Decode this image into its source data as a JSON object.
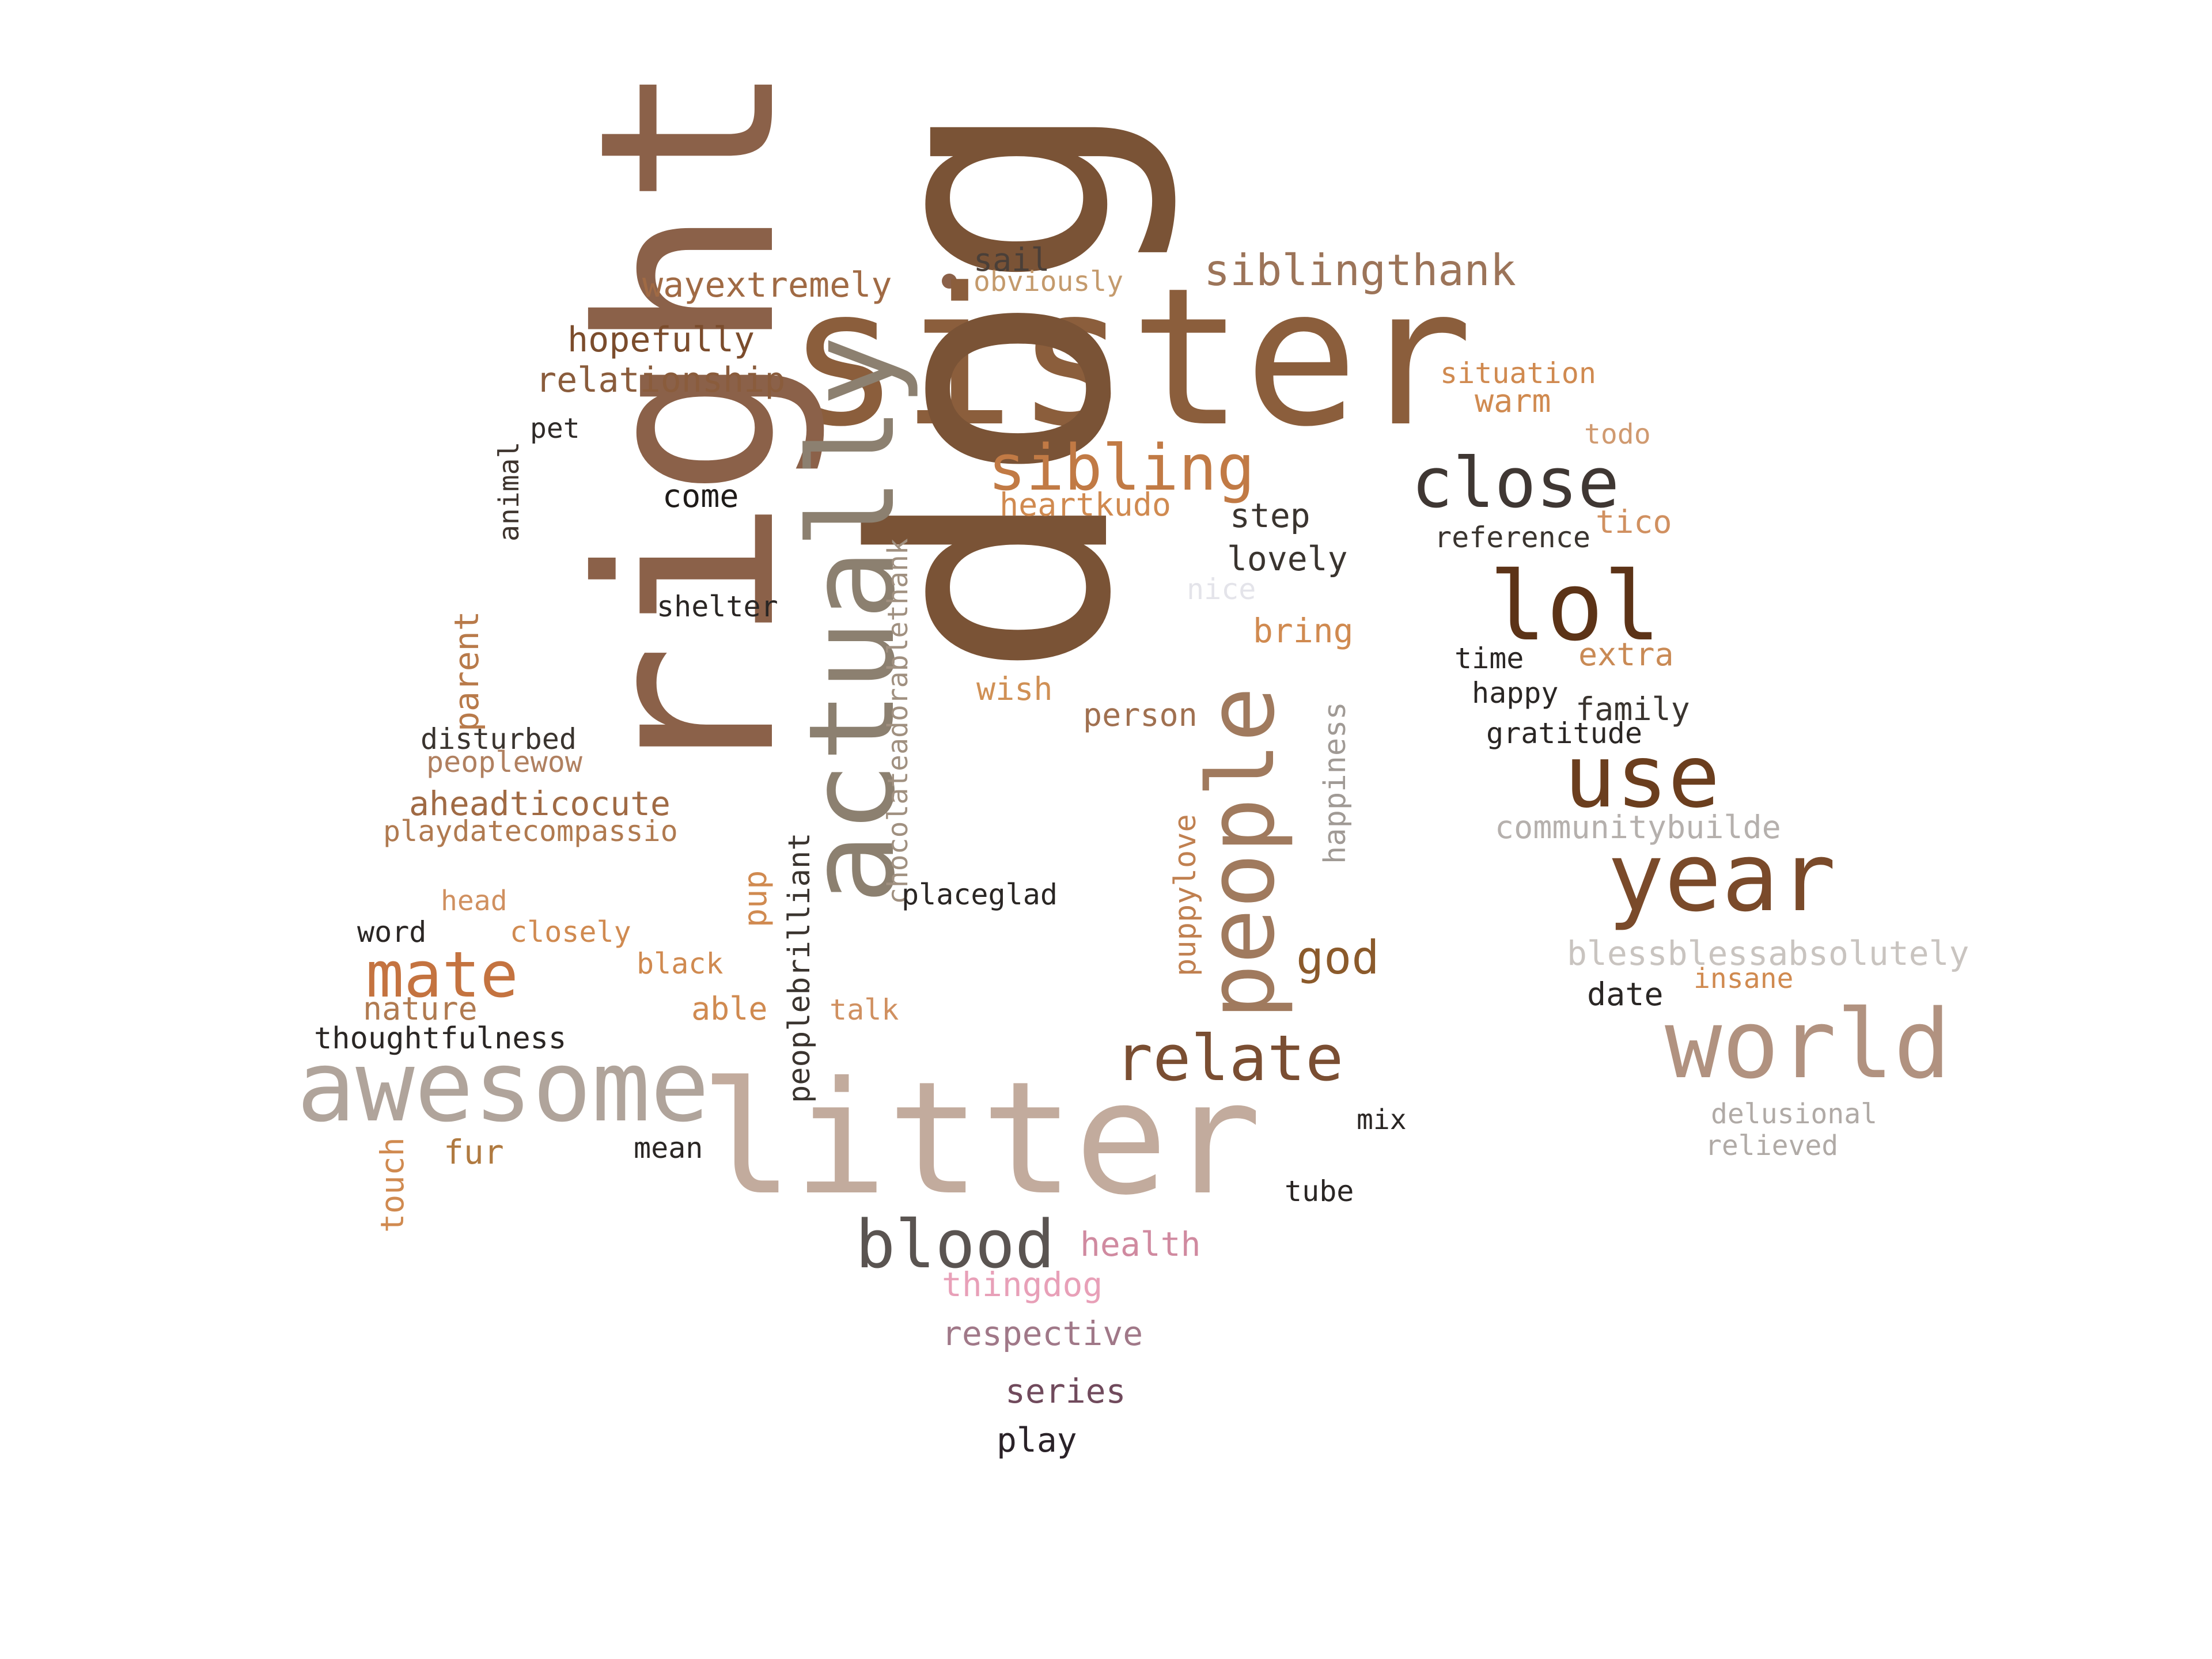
{
  "words": [
    {
      "text": "sister",
      "color": "#8b5e3c"
    },
    {
      "text": "dog",
      "color": "#7a5336"
    },
    {
      "text": "right",
      "color": "#8b6149"
    },
    {
      "text": "litter",
      "color": "#c2ab9d"
    },
    {
      "text": "actually",
      "color": "#8c8070"
    },
    {
      "text": "people",
      "color": "#a07a5e"
    },
    {
      "text": "awesome",
      "color": "#b0a49b"
    },
    {
      "text": "world",
      "color": "#b19280"
    },
    {
      "text": "year",
      "color": "#7a4a2a"
    },
    {
      "text": "lol",
      "color": "#5c3317"
    },
    {
      "text": "use",
      "color": "#6b3e1e"
    },
    {
      "text": "close",
      "color": "#3f3733"
    },
    {
      "text": "sibling",
      "color": "#c17a45"
    },
    {
      "text": "mate",
      "color": "#c47340"
    },
    {
      "text": "relate",
      "color": "#7a4e32"
    },
    {
      "text": "blood",
      "color": "#5a5451"
    },
    {
      "text": "siblingthank",
      "color": "#9c7459"
    },
    {
      "text": "god",
      "color": "#8b5a2b"
    },
    {
      "text": "wayextremely",
      "color": "#a06a44"
    },
    {
      "text": "hopefully",
      "color": "#7b4c2c"
    },
    {
      "text": "relationship",
      "color": "#8a5c3c"
    },
    {
      "text": "sail",
      "color": "#4a3f38"
    },
    {
      "text": "obviously",
      "color": "#c49a6c"
    },
    {
      "text": "situation",
      "color": "#d08a50"
    },
    {
      "text": "warm",
      "color": "#d08a50"
    },
    {
      "text": "todo",
      "color": "#d09a70"
    },
    {
      "text": "pet",
      "color": "#2e2a28"
    },
    {
      "text": "animal",
      "color": "#3e342e"
    },
    {
      "text": "come",
      "color": "#1e1a18"
    },
    {
      "text": "heartkudo",
      "color": "#d08a50"
    },
    {
      "text": "step",
      "color": "#3a342f"
    },
    {
      "text": "lovely",
      "color": "#3a342f"
    },
    {
      "text": "reference",
      "color": "#3a342f"
    },
    {
      "text": "tico",
      "color": "#d09060"
    },
    {
      "text": "nice",
      "color": "#e4e4ea"
    },
    {
      "text": "shelter",
      "color": "#2a2624"
    },
    {
      "text": "bring",
      "color": "#d08a50"
    },
    {
      "text": "time",
      "color": "#2a2624"
    },
    {
      "text": "extra",
      "color": "#c98a55"
    },
    {
      "text": "happy",
      "color": "#2a2624"
    },
    {
      "text": "family",
      "color": "#3a342f"
    },
    {
      "text": "gratitude",
      "color": "#2a2624"
    },
    {
      "text": "parent",
      "color": "#b87a4a"
    },
    {
      "text": "chocolateadorablethank",
      "color": "#a09080"
    },
    {
      "text": "wish",
      "color": "#d09055"
    },
    {
      "text": "person",
      "color": "#a07050"
    },
    {
      "text": "disturbed",
      "color": "#3a342f"
    },
    {
      "text": "peoplewow",
      "color": "#b08060"
    },
    {
      "text": "happiness",
      "color": "#a09a95"
    },
    {
      "text": "aheadticocute",
      "color": "#a06a44"
    },
    {
      "text": "playdatecompassio",
      "color": "#b07a50"
    },
    {
      "text": "communitybuilde",
      "color": "#b5b0ad"
    },
    {
      "text": "peoplebrilliant",
      "color": "#3a342f"
    },
    {
      "text": "pup",
      "color": "#d08a50"
    },
    {
      "text": "puppylove",
      "color": "#c08050"
    },
    {
      "text": "placeglad",
      "color": "#2a2624"
    },
    {
      "text": "head",
      "color": "#d09060"
    },
    {
      "text": "word",
      "color": "#2a2624"
    },
    {
      "text": "closely",
      "color": "#d08a50"
    },
    {
      "text": "black",
      "color": "#d08a50"
    },
    {
      "text": "blessblessabsolutely",
      "color": "#c9c4c0"
    },
    {
      "text": "insane",
      "color": "#d08a50"
    },
    {
      "text": "date",
      "color": "#2a2624"
    },
    {
      "text": "nature",
      "color": "#b07a50"
    },
    {
      "text": "able",
      "color": "#d08a50"
    },
    {
      "text": "talk",
      "color": "#d09060"
    },
    {
      "text": "thoughtfulness",
      "color": "#2a2624"
    },
    {
      "text": "fur",
      "color": "#b07a40"
    },
    {
      "text": "mean",
      "color": "#2a2624"
    },
    {
      "text": "touch",
      "color": "#d08a50"
    },
    {
      "text": "mix",
      "color": "#2a2624"
    },
    {
      "text": "delusional",
      "color": "#b0aaa6"
    },
    {
      "text": "relieved",
      "color": "#b0aaa6"
    },
    {
      "text": "tube",
      "color": "#2a2624"
    },
    {
      "text": "health",
      "color": "#d08aa0"
    },
    {
      "text": "thingdog",
      "color": "#e8a0b8"
    },
    {
      "text": "respective",
      "color": "#a07888"
    },
    {
      "text": "series",
      "color": "#704a5c"
    },
    {
      "text": "play",
      "color": "#2a2228"
    }
  ]
}
